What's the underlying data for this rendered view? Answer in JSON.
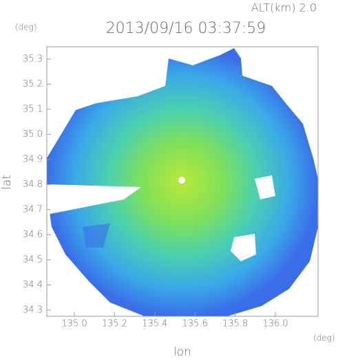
{
  "chart_data": {
    "type": "radar-map",
    "title": "2013/09/16 03:37:59",
    "altitude_label": "ALT(km) 2.0",
    "x_label": "lon",
    "x_unit": "(deg)",
    "y_label": "lat",
    "y_unit": "(deg)",
    "xlim": [
      134.863,
      136.212
    ],
    "ylim": [
      34.275,
      35.349
    ],
    "xticks": [
      {
        "value": 135,
        "label": "135.0"
      },
      135.2,
      135.4,
      135.6,
      135.8,
      {
        "value": 136,
        "label": "136.0"
      }
    ],
    "yticks": [
      34.3,
      34.4,
      34.5,
      34.6,
      34.7,
      34.8,
      34.9,
      {
        "value": 35,
        "label": "35.0"
      },
      35.1,
      35.2,
      35.3
    ]
  }
}
